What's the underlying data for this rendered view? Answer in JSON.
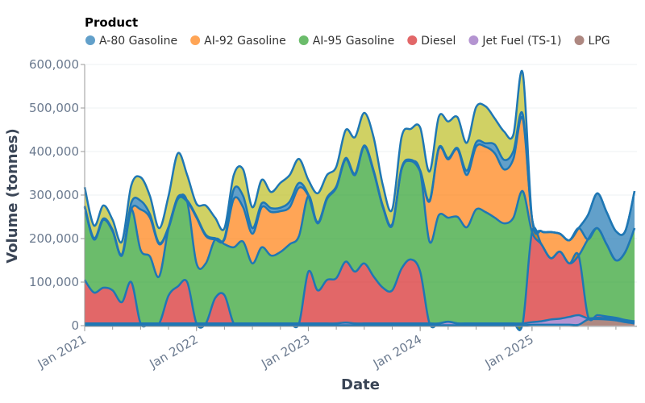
{
  "chart_data": {
    "type": "area",
    "stacked": true,
    "smooth": true,
    "legend_title": "Product",
    "legend_position": "top",
    "xlabel": "Date",
    "ylabel": "Volume (tonnes)",
    "ylim": [
      0,
      600000
    ],
    "yticks": [
      "0",
      "100,000",
      "200,000",
      "300,000",
      "400,000",
      "500,000",
      "600,000"
    ],
    "xticks": [
      {
        "date": "2021-01",
        "label": "Jan 2021"
      },
      {
        "date": "2022-01",
        "label": "Jan 2022"
      },
      {
        "date": "2023-01",
        "label": "Jan 2023"
      },
      {
        "date": "2024-01",
        "label": "Jan 2024"
      },
      {
        "date": "2025-01",
        "label": "Jan 2025"
      }
    ],
    "grid": "horizontal",
    "outline_color": "#1f77b4",
    "x": [
      "2021-01",
      "2021-02",
      "2021-03",
      "2021-04",
      "2021-05",
      "2021-06",
      "2021-07",
      "2021-08",
      "2021-09",
      "2021-10",
      "2021-11",
      "2021-12",
      "2022-01",
      "2022-02",
      "2022-03",
      "2022-04",
      "2022-05",
      "2022-06",
      "2022-07",
      "2022-08",
      "2022-09",
      "2022-10",
      "2022-11",
      "2022-12",
      "2023-01",
      "2023-02",
      "2023-03",
      "2023-04",
      "2023-05",
      "2023-06",
      "2023-07",
      "2023-08",
      "2023-09",
      "2023-10",
      "2023-11",
      "2023-12",
      "2024-01",
      "2024-02",
      "2024-03",
      "2024-04",
      "2024-05",
      "2024-06",
      "2024-07",
      "2024-08",
      "2024-09",
      "2024-10",
      "2024-11",
      "2024-12",
      "2025-01",
      "2025-02",
      "2025-03",
      "2025-04",
      "2025-05",
      "2025-06",
      "2025-07",
      "2025-08",
      "2025-09",
      "2025-10",
      "2025-11",
      "2025-12"
    ],
    "series": [
      {
        "name": "LPG",
        "color": "#8c564b",
        "values": [
          1000,
          1000,
          1000,
          1000,
          1000,
          1000,
          1000,
          1000,
          1000,
          1000,
          1000,
          1000,
          1000,
          1000,
          1000,
          1000,
          1000,
          1000,
          1000,
          1000,
          1000,
          1000,
          1000,
          1000,
          1000,
          1000,
          1000,
          1000,
          1000,
          1000,
          1000,
          1000,
          1000,
          1000,
          1000,
          1000,
          1000,
          1000,
          1000,
          1000,
          1000,
          1000,
          1000,
          1000,
          1000,
          1000,
          1000,
          1000,
          2000,
          2000,
          2000,
          2000,
          2000,
          2000,
          14000,
          15000,
          14000,
          12000,
          8000,
          5000
        ]
      },
      {
        "name": "Jet Fuel (TS-1)",
        "color": "#9467bd",
        "values": [
          4000,
          4000,
          4000,
          4000,
          4000,
          4000,
          4000,
          4000,
          4000,
          4000,
          4000,
          4000,
          4000,
          4000,
          4000,
          4000,
          4000,
          4000,
          4000,
          4000,
          4000,
          4000,
          4000,
          4000,
          4000,
          4000,
          4000,
          4000,
          6000,
          4000,
          4000,
          4000,
          4000,
          4000,
          4000,
          4000,
          4000,
          4000,
          4000,
          8000,
          4000,
          4000,
          4000,
          4000,
          4000,
          4000,
          4000,
          4000,
          6000,
          8000,
          12000,
          14000,
          18000,
          22000,
          3000,
          3000,
          3000,
          3000,
          3000,
          3000
        ]
      },
      {
        "name": "Diesel",
        "color": "#d62728",
        "values": [
          100000,
          71000,
          82000,
          76000,
          49000,
          95000,
          0,
          0,
          0,
          64000,
          85000,
          95000,
          0,
          0,
          58000,
          65000,
          0,
          0,
          0,
          0,
          0,
          0,
          0,
          0,
          119000,
          76000,
          100000,
          104000,
          140000,
          119000,
          138000,
          108000,
          82000,
          76000,
          126000,
          147000,
          119000,
          0,
          0,
          0,
          0,
          0,
          0,
          0,
          0,
          0,
          0,
          0,
          207000,
          177000,
          141000,
          154000,
          123000,
          137000,
          5000,
          6000,
          4000,
          3000,
          2000,
          2000
        ]
      },
      {
        "name": "AI-95 Gasoline",
        "color": "#2ca02c",
        "values": [
          167000,
          122000,
          156000,
          136000,
          107000,
          167000,
          169000,
          154000,
          108000,
          155000,
          201000,
          185000,
          138000,
          138000,
          135000,
          117000,
          175000,
          188000,
          138000,
          175000,
          156000,
          164000,
          182000,
          201000,
          174000,
          154000,
          186000,
          208000,
          235000,
          222000,
          268000,
          241000,
          185000,
          149000,
          228000,
          226000,
          230000,
          188000,
          249000,
          239000,
          245000,
          221000,
          262000,
          256000,
          243000,
          230000,
          243000,
          304000,
          0,
          0,
          0,
          0,
          0,
          0,
          176000,
          200000,
          166000,
          132000,
          156000,
          214000
        ]
      },
      {
        "name": "AI-92 Gasoline",
        "color": "#ff7f0e",
        "values": [
          0,
          0,
          0,
          0,
          0,
          0,
          93000,
          89000,
          74000,
          0,
          0,
          0,
          105000,
          63000,
          0,
          11000,
          111000,
          79000,
          68000,
          92000,
          100000,
          94000,
          85000,
          111000,
          0,
          0,
          0,
          0,
          0,
          0,
          0,
          0,
          0,
          0,
          0,
          0,
          0,
          92000,
          152000,
          134000,
          155000,
          120000,
          144000,
          150000,
          148000,
          124000,
          135000,
          167000,
          31000,
          30000,
          60000,
          41000,
          53000,
          63000,
          0,
          0,
          0,
          0,
          0,
          0
        ]
      },
      {
        "name": "A-80 Gasoline",
        "color": "#1f77b4",
        "values": [
          3000,
          3000,
          3000,
          3000,
          3000,
          15000,
          20000,
          8000,
          3000,
          3000,
          5000,
          3000,
          3000,
          3000,
          3000,
          3000,
          22000,
          26000,
          13000,
          9000,
          9000,
          8000,
          13000,
          11000,
          3000,
          3000,
          3000,
          3000,
          3000,
          3000,
          3000,
          3000,
          3000,
          3000,
          3000,
          3000,
          3000,
          3000,
          3000,
          3000,
          3000,
          10000,
          10000,
          8000,
          20000,
          22000,
          18000,
          10000,
          0,
          0,
          0,
          0,
          0,
          0,
          56000,
          80000,
          74000,
          67000,
          48000,
          85000
        ]
      },
      {
        "name": "",
        "color": "#bcbd22",
        "values": [
          43000,
          29000,
          30000,
          23000,
          29000,
          40000,
          54000,
          42000,
          34000,
          71000,
          100000,
          58000,
          29000,
          67000,
          47000,
          23000,
          33000,
          61000,
          48000,
          54000,
          37000,
          57000,
          61000,
          55000,
          34000,
          66000,
          52000,
          45000,
          64000,
          84000,
          75000,
          76000,
          47000,
          34000,
          71000,
          71000,
          98000,
          66000,
          71000,
          84000,
          71000,
          64000,
          81000,
          85000,
          60000,
          65000,
          38000,
          95000,
          0,
          0,
          0,
          0,
          0,
          0,
          0,
          0,
          0,
          0,
          0,
          0
        ]
      }
    ],
    "legend": [
      {
        "label": "A-80 Gasoline",
        "color": "#1f77b4"
      },
      {
        "label": "AI-92 Gasoline",
        "color": "#ff7f0e"
      },
      {
        "label": "AI-95 Gasoline",
        "color": "#2ca02c"
      },
      {
        "label": "Diesel",
        "color": "#d62728"
      },
      {
        "label": "Jet Fuel (TS-1)",
        "color": "#9467bd"
      },
      {
        "label": "LPG",
        "color": "#8c564b"
      }
    ]
  }
}
